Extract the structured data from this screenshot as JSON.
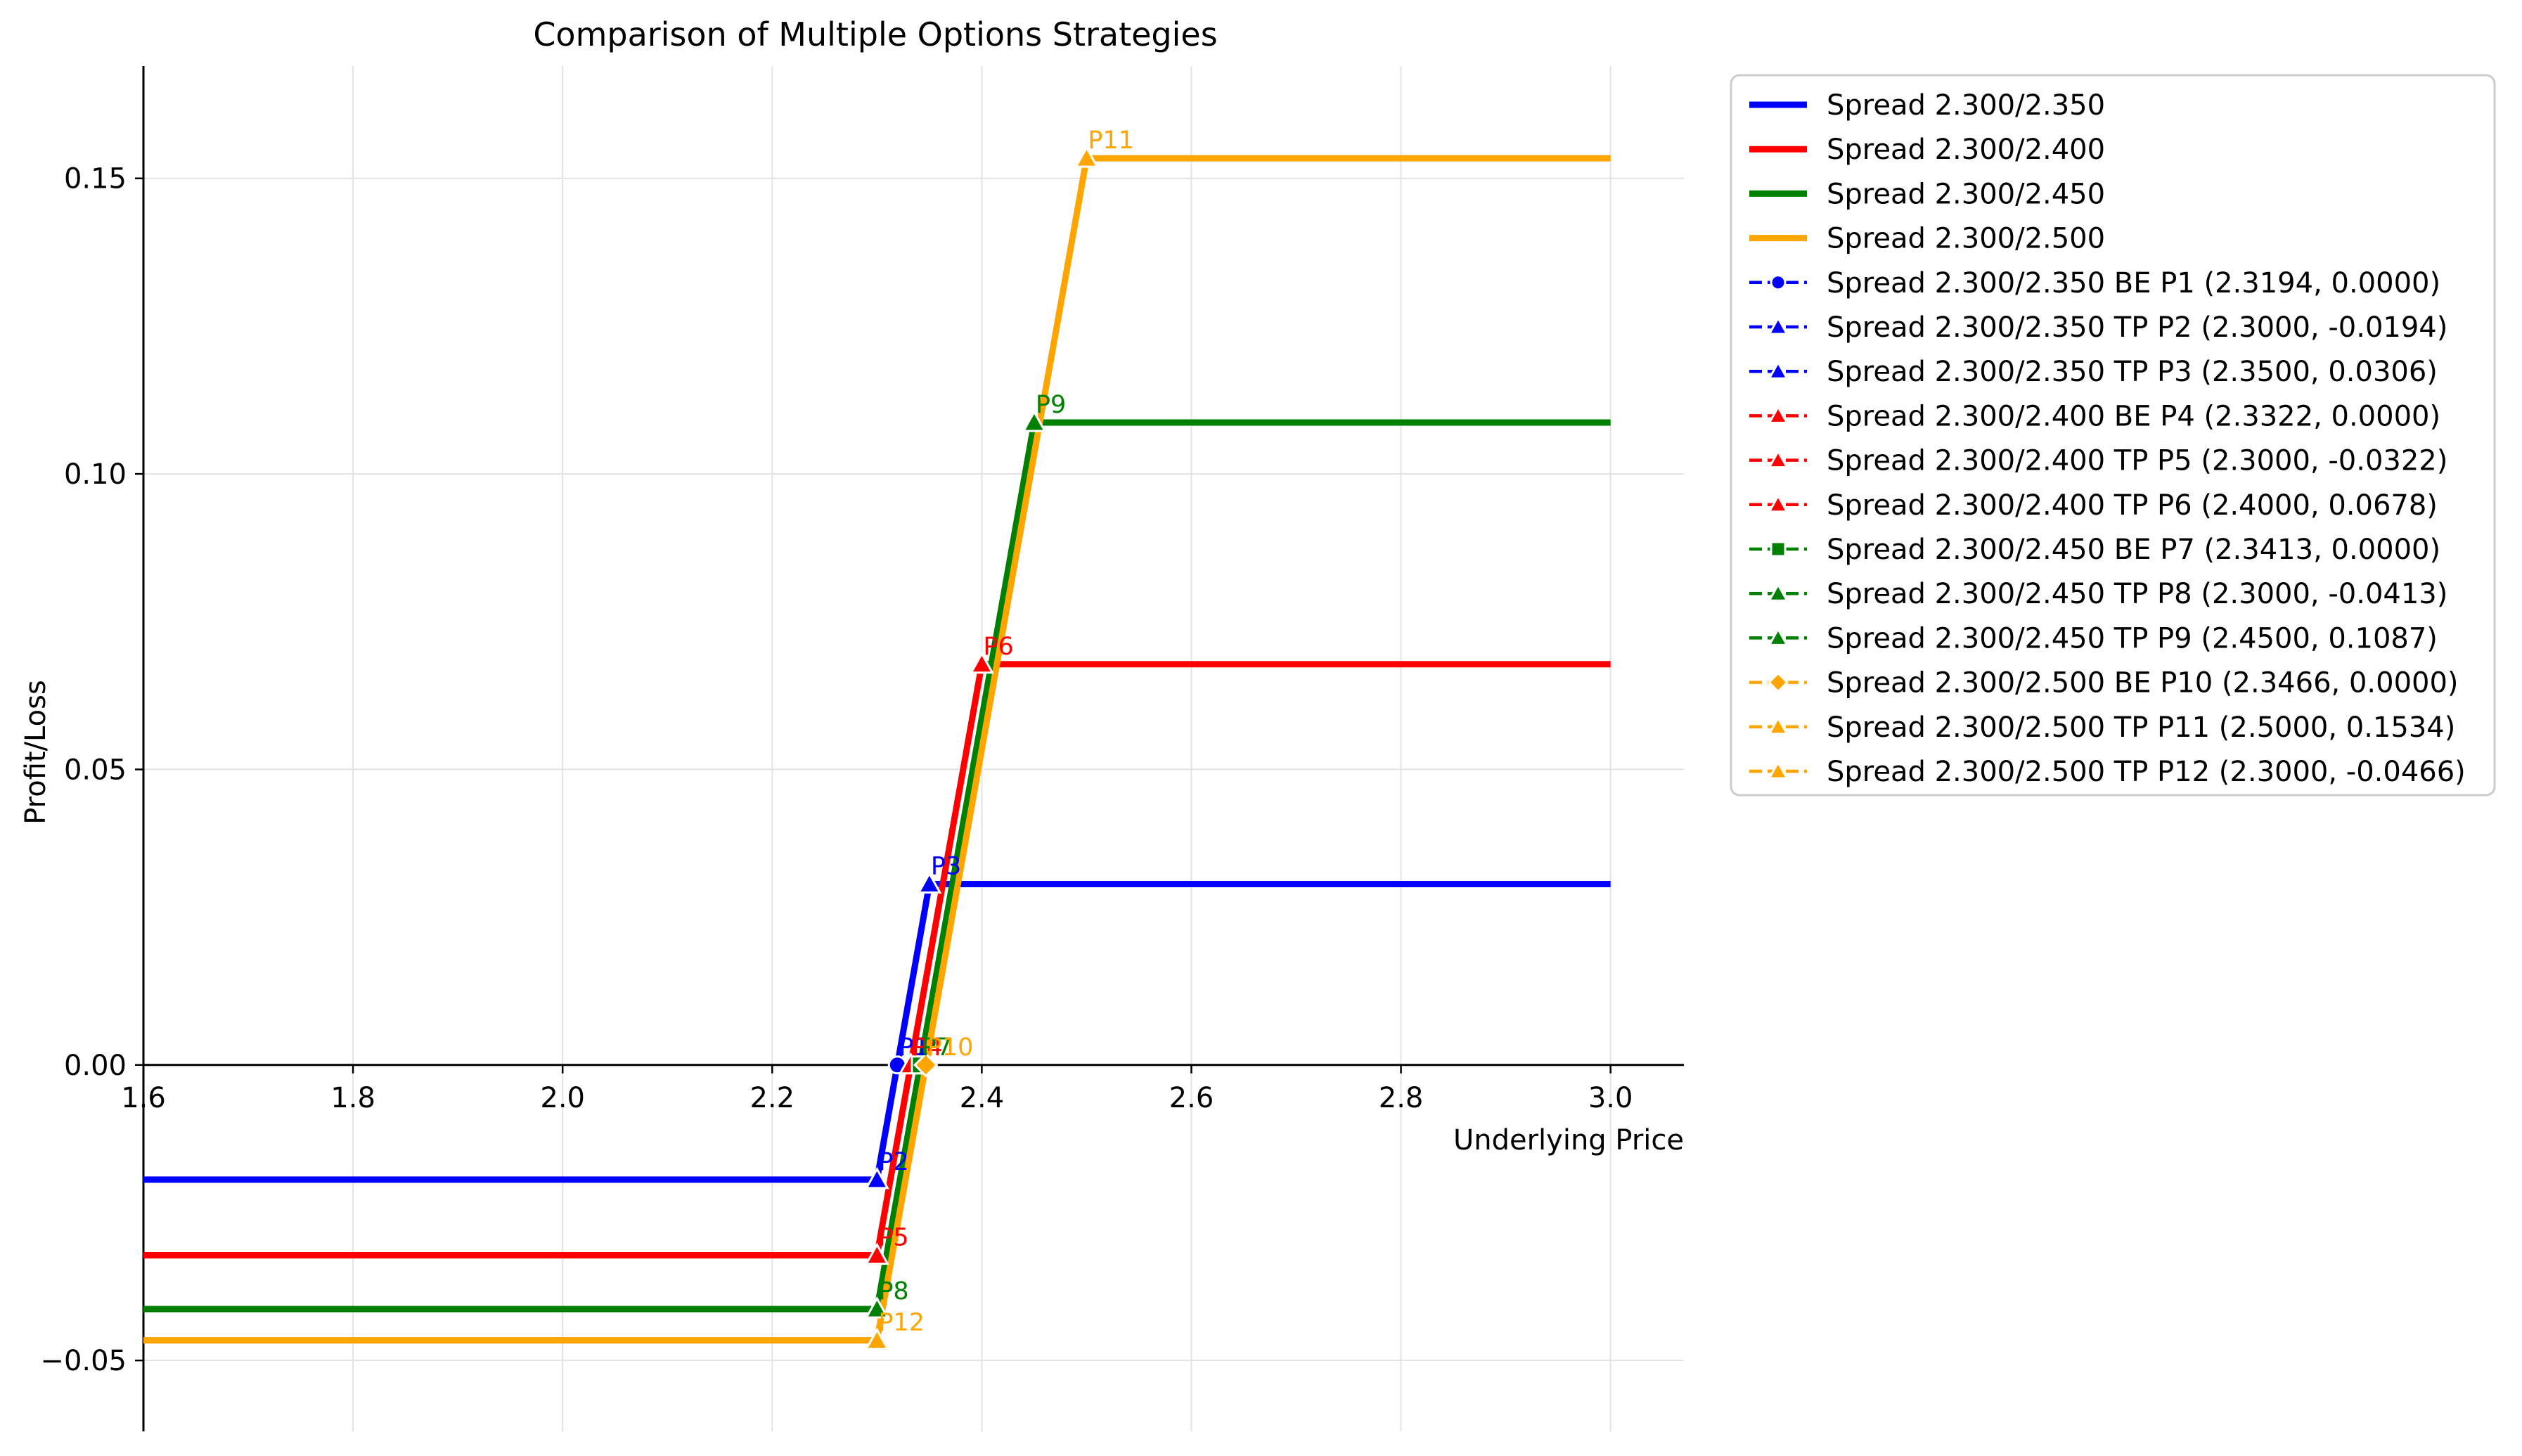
{
  "chart_data": {
    "type": "line",
    "title": "Comparison of Multiple Options Strategies",
    "xlabel": "Underlying Price",
    "ylabel": "Profit/Loss",
    "xlim": [
      1.6,
      3.07
    ],
    "ylim": [
      -0.062,
      0.169
    ],
    "x_ticks": [
      1.6,
      1.8,
      2.0,
      2.2,
      2.4,
      2.6,
      2.8,
      3.0
    ],
    "x_tick_labels": [
      "1.6",
      "1.8",
      "2.0",
      "2.2",
      "2.4",
      "2.6",
      "2.8",
      "3.0"
    ],
    "y_ticks": [
      -0.05,
      0.0,
      0.05,
      0.1,
      0.15
    ],
    "y_tick_labels": [
      "−0.05",
      "0.00",
      "0.05",
      "0.10",
      "0.15"
    ],
    "grid": true,
    "legend_position": "outside-right",
    "series": [
      {
        "name": "Spread 2.300/2.350",
        "color": "#0000ff",
        "x": [
          1.6,
          2.3,
          2.35,
          3.0
        ],
        "y": [
          -0.0194,
          -0.0194,
          0.0306,
          0.0306
        ]
      },
      {
        "name": "Spread 2.300/2.400",
        "color": "#ff0000",
        "x": [
          1.6,
          2.3,
          2.4,
          3.0
        ],
        "y": [
          -0.0322,
          -0.0322,
          0.0678,
          0.0678
        ]
      },
      {
        "name": "Spread 2.300/2.450",
        "color": "#008000",
        "x": [
          1.6,
          2.3,
          2.45,
          3.0
        ],
        "y": [
          -0.0413,
          -0.0413,
          0.1087,
          0.1087
        ]
      },
      {
        "name": "Spread 2.300/2.500",
        "color": "#ffa500",
        "x": [
          1.6,
          2.3,
          2.5,
          3.0
        ],
        "y": [
          -0.0466,
          -0.0466,
          0.1534,
          0.1534
        ]
      }
    ],
    "points": [
      {
        "legend": "Spread 2.300/2.350 BE P1 (2.3194, 0.0000)",
        "label": "P1",
        "x": 2.3194,
        "y": 0.0,
        "marker": "circle",
        "color": "#0000ff"
      },
      {
        "legend": "Spread 2.300/2.350 TP P2 (2.3000, -0.0194)",
        "label": "P2",
        "x": 2.3,
        "y": -0.0194,
        "marker": "triangle",
        "color": "#0000ff"
      },
      {
        "legend": "Spread 2.300/2.350 TP P3 (2.3500, 0.0306)",
        "label": "P3",
        "x": 2.35,
        "y": 0.0306,
        "marker": "triangle",
        "color": "#0000ff"
      },
      {
        "legend": "Spread 2.300/2.400 BE P4 (2.3322, 0.0000)",
        "label": "P4",
        "x": 2.3322,
        "y": 0.0,
        "marker": "triangle",
        "color": "#ff0000"
      },
      {
        "legend": "Spread 2.300/2.400 TP P5 (2.3000, -0.0322)",
        "label": "P5",
        "x": 2.3,
        "y": -0.0322,
        "marker": "triangle",
        "color": "#ff0000"
      },
      {
        "legend": "Spread 2.300/2.400 TP P6 (2.4000, 0.0678)",
        "label": "P6",
        "x": 2.4,
        "y": 0.0678,
        "marker": "triangle",
        "color": "#ff0000"
      },
      {
        "legend": "Spread 2.300/2.450 BE P7 (2.3413, 0.0000)",
        "label": "P7",
        "x": 2.3413,
        "y": 0.0,
        "marker": "square",
        "color": "#008000"
      },
      {
        "legend": "Spread 2.300/2.450 TP P8 (2.3000, -0.0413)",
        "label": "P8",
        "x": 2.3,
        "y": -0.0413,
        "marker": "triangle",
        "color": "#008000"
      },
      {
        "legend": "Spread 2.300/2.450 TP P9 (2.4500, 0.1087)",
        "label": "P9",
        "x": 2.45,
        "y": 0.1087,
        "marker": "triangle",
        "color": "#008000"
      },
      {
        "legend": "Spread 2.300/2.500 BE P10 (2.3466, 0.0000)",
        "label": "P10",
        "x": 2.3466,
        "y": 0.0,
        "marker": "diamond",
        "color": "#ffa500"
      },
      {
        "legend": "Spread 2.300/2.500 TP P11 (2.5000, 0.1534)",
        "label": "P11",
        "x": 2.5,
        "y": 0.1534,
        "marker": "triangle",
        "color": "#ffa500"
      },
      {
        "legend": "Spread 2.300/2.500 TP P12 (2.3000, -0.0466)",
        "label": "P12",
        "x": 2.3,
        "y": -0.0466,
        "marker": "triangle",
        "color": "#ffa500"
      }
    ]
  }
}
